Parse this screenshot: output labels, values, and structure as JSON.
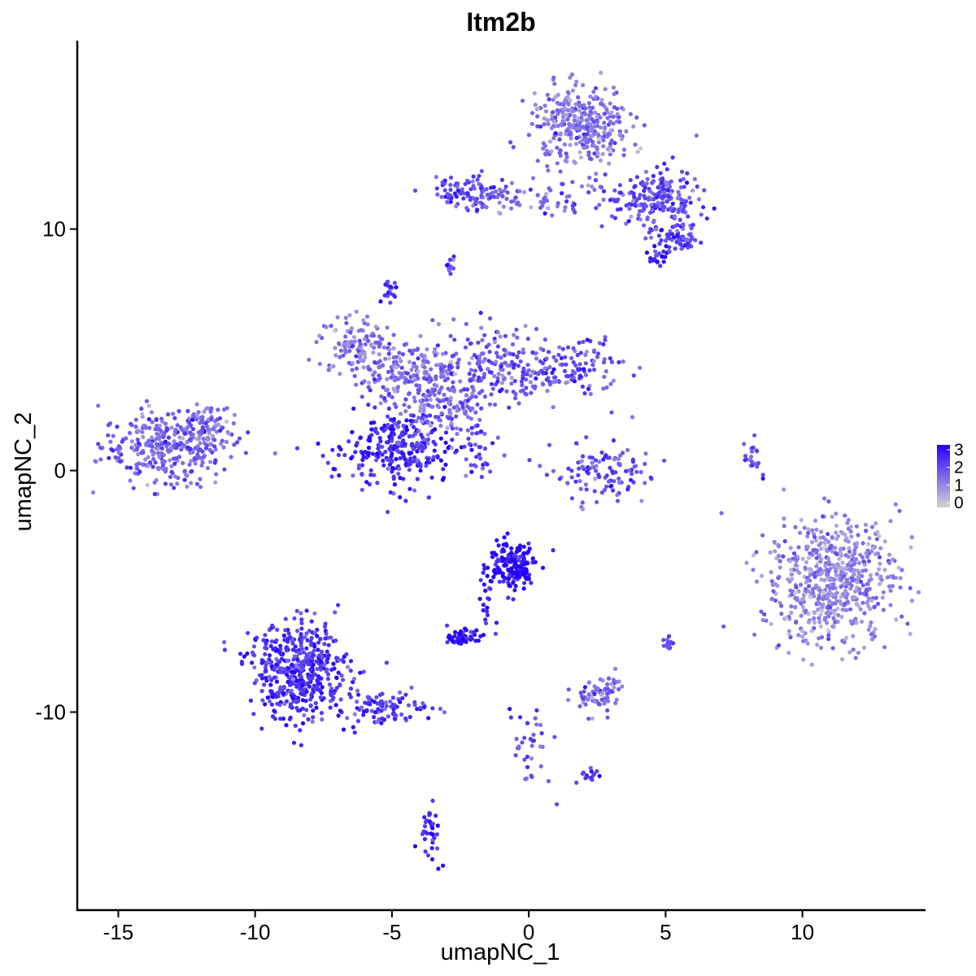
{
  "chart_data": {
    "type": "scatter",
    "title": "Itm2b",
    "xlabel": "umapNC_1",
    "ylabel": "umapNC_2",
    "xlim": [
      -16.5,
      14.5
    ],
    "ylim": [
      -18.2,
      17.8
    ],
    "x_ticks": [
      -15,
      -10,
      -5,
      0,
      5,
      10
    ],
    "x_tick_labels": [
      "-15",
      "-10",
      "-5",
      "0",
      "5",
      "10"
    ],
    "y_ticks": [
      -10,
      0,
      10
    ],
    "y_tick_labels": [
      "-10",
      "0",
      "10"
    ],
    "legend": {
      "position": "right",
      "values": [
        0,
        1,
        2,
        3
      ],
      "labels": [
        "0",
        "1",
        "2",
        "3"
      ],
      "low_color": "#d3d3d3",
      "high_color": "#2200ff"
    },
    "clusters": [
      {
        "cx": -13.2,
        "cy": 1.0,
        "sx": 1.2,
        "sy": 0.75,
        "n": 330,
        "expr": 1.6
      },
      {
        "cx": -12.0,
        "cy": 2.0,
        "sx": 0.6,
        "sy": 0.4,
        "n": 60,
        "expr": 1.4
      },
      {
        "cx": -6.3,
        "cy": 5.3,
        "sx": 0.7,
        "sy": 0.6,
        "n": 110,
        "expr": 1.3
      },
      {
        "cx": -4.7,
        "cy": 4.2,
        "sx": 0.9,
        "sy": 0.6,
        "n": 150,
        "expr": 1.4
      },
      {
        "cx": -4.7,
        "cy": 0.8,
        "sx": 1.0,
        "sy": 0.8,
        "n": 280,
        "expr": 2.4
      },
      {
        "cx": -3.3,
        "cy": 2.8,
        "sx": 0.9,
        "sy": 0.7,
        "n": 160,
        "expr": 1.4
      },
      {
        "cx": -1.2,
        "cy": 4.3,
        "sx": 1.1,
        "sy": 0.9,
        "n": 190,
        "expr": 1.8
      },
      {
        "cx": 1.6,
        "cy": 4.3,
        "sx": 0.9,
        "sy": 0.6,
        "n": 110,
        "expr": 1.9
      },
      {
        "cx": -5.1,
        "cy": 7.4,
        "sx": 0.15,
        "sy": 0.2,
        "n": 20,
        "expr": 2.2
      },
      {
        "cx": -1.8,
        "cy": 1.0,
        "sx": 0.5,
        "sy": 0.5,
        "n": 30,
        "expr": 1.8
      },
      {
        "cx": 2.7,
        "cy": -0.1,
        "sx": 0.9,
        "sy": 0.7,
        "n": 110,
        "expr": 1.8
      },
      {
        "cx": 8.2,
        "cy": 0.5,
        "sx": 0.15,
        "sy": 0.4,
        "n": 20,
        "expr": 1.8
      },
      {
        "cx": -2.0,
        "cy": 11.5,
        "sx": 0.7,
        "sy": 0.35,
        "n": 100,
        "expr": 2.0
      },
      {
        "cx": 1.9,
        "cy": 14.3,
        "sx": 0.9,
        "sy": 0.8,
        "n": 330,
        "expr": 1.3
      },
      {
        "cx": 1.2,
        "cy": 11.2,
        "sx": 1.6,
        "sy": 0.35,
        "n": 70,
        "expr": 1.5
      },
      {
        "cx": 4.6,
        "cy": 11.3,
        "sx": 0.8,
        "sy": 0.6,
        "n": 200,
        "expr": 1.9
      },
      {
        "cx": 5.4,
        "cy": 9.6,
        "sx": 0.4,
        "sy": 0.3,
        "n": 70,
        "expr": 2.0
      },
      {
        "cx": 4.8,
        "cy": 8.8,
        "sx": 0.2,
        "sy": 0.2,
        "n": 20,
        "expr": 2.4
      },
      {
        "cx": -2.9,
        "cy": 8.6,
        "sx": 0.12,
        "sy": 0.2,
        "n": 10,
        "expr": 2.0
      },
      {
        "cx": 11.1,
        "cy": -4.5,
        "sx": 1.2,
        "sy": 1.3,
        "n": 620,
        "expr": 1.1
      },
      {
        "cx": -8.4,
        "cy": -8.3,
        "sx": 0.9,
        "sy": 1.0,
        "n": 480,
        "expr": 2.3
      },
      {
        "cx": -5.4,
        "cy": -9.8,
        "sx": 0.9,
        "sy": 0.35,
        "n": 90,
        "expr": 2.2
      },
      {
        "cx": -0.6,
        "cy": -3.9,
        "sx": 0.45,
        "sy": 0.5,
        "n": 180,
        "expr": 2.9
      },
      {
        "cx": -2.4,
        "cy": -6.9,
        "sx": 0.25,
        "sy": 0.15,
        "n": 60,
        "expr": 3.0
      },
      {
        "cx": -1.6,
        "cy": -5.5,
        "sx": 0.2,
        "sy": 0.7,
        "n": 20,
        "expr": 2.8
      },
      {
        "cx": 2.5,
        "cy": -9.3,
        "sx": 0.45,
        "sy": 0.4,
        "n": 70,
        "expr": 1.5
      },
      {
        "cx": 5.1,
        "cy": -7.2,
        "sx": 0.1,
        "sy": 0.15,
        "n": 15,
        "expr": 2.0
      },
      {
        "cx": 0.0,
        "cy": -11.4,
        "sx": 0.4,
        "sy": 0.8,
        "n": 35,
        "expr": 1.8
      },
      {
        "cx": 2.3,
        "cy": -12.6,
        "sx": 0.25,
        "sy": 0.12,
        "n": 15,
        "expr": 2.4
      },
      {
        "cx": -3.6,
        "cy": -15.0,
        "sx": 0.2,
        "sy": 0.6,
        "n": 35,
        "expr": 2.5
      }
    ]
  }
}
